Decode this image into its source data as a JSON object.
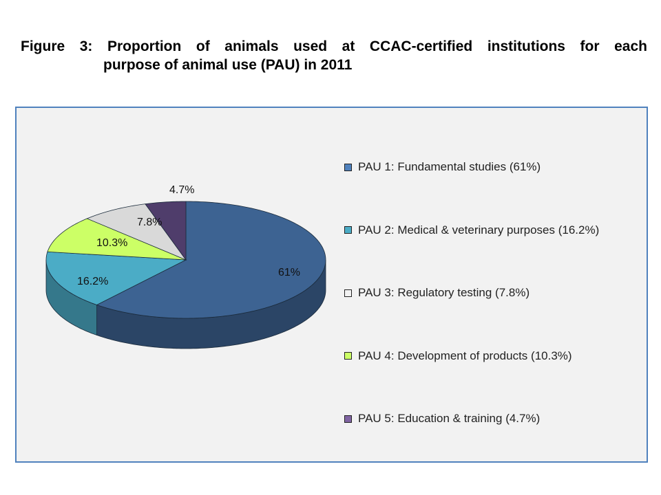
{
  "chart_data": {
    "type": "pie",
    "style": "3d",
    "title_lines": [
      "Figure 3: Proportion of animals used at CCAC-certified institutions for each",
      "purpose of animal use (PAU) in 2011"
    ],
    "slices": [
      {
        "name": "PAU 1: Fundamental studies (61%)",
        "value": 61,
        "label": "61%",
        "color": "#3d6392"
      },
      {
        "name": "PAU 2: Medical & veterinary purposes (16.2%)",
        "value": 16.2,
        "label": "16.2%",
        "color": "#4bacc6"
      },
      {
        "name": "PAU 4: Development of products (10.3%)",
        "value": 10.3,
        "label": "10.3%",
        "color": "#ccff66"
      },
      {
        "name": "PAU 3: Regulatory testing (7.8%)",
        "value": 7.8,
        "label": "7.8%",
        "color": "#d9d9d9"
      },
      {
        "name": "PAU 5: Education & training (4.7%)",
        "value": 4.7,
        "label": "4.7%",
        "color": "#4f3d6b"
      }
    ],
    "legend": [
      {
        "label": "PAU 1: Fundamental studies (61%)",
        "color": "#4f81bd"
      },
      {
        "label": "PAU 2: Medical & veterinary purposes (16.2%)",
        "color": "#4bacc6"
      },
      {
        "label": "PAU 3: Regulatory testing (7.8%)",
        "color": "#f2f2f2"
      },
      {
        "label": "PAU 4: Development of products (10.3%)",
        "color": "#ccff66"
      },
      {
        "label": "PAU 5: Education & training (4.7%)",
        "color": "#8064a2"
      }
    ],
    "legend_position": "right",
    "border_color": "#4f81bd"
  }
}
